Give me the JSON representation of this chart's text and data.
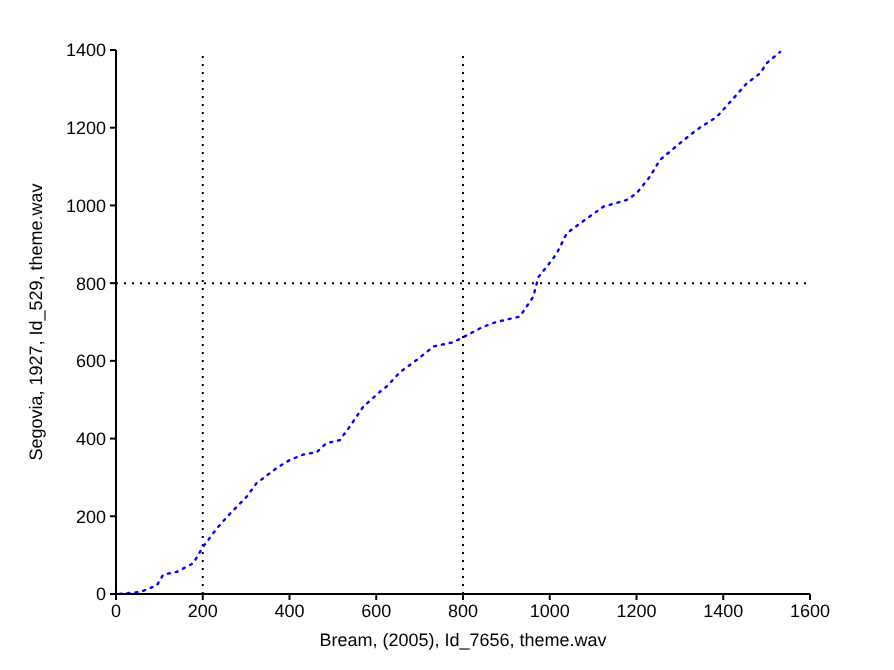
{
  "chart_data": {
    "type": "line",
    "xlabel": "Bream, (2005), Id_7656, theme.wav",
    "ylabel": "Segovia, 1927, Id_529, theme.wav",
    "x": [
      8,
      55,
      94,
      109,
      140,
      178,
      201,
      232,
      263,
      301,
      324,
      370,
      401,
      432,
      463,
      485,
      516,
      539,
      570,
      608,
      624,
      655,
      693,
      732,
      778,
      847,
      877,
      931,
      962,
      974,
      993,
      1016,
      1039,
      1070,
      1124,
      1177,
      1200,
      1231,
      1254,
      1300,
      1338,
      1385,
      1423,
      1454,
      1485,
      1500,
      1531
    ],
    "series": [
      {
        "color": "#0000ff",
        "values": [
          0,
          5,
          22,
          50,
          57,
          79,
          122,
          168,
          207,
          250,
          285,
          324,
          345,
          359,
          365,
          388,
          396,
          431,
          482,
          520,
          534,
          571,
          602,
          637,
          648,
          688,
          700,
          714,
          765,
          816,
          842,
          876,
          928,
          954,
          997,
          1014,
          1031,
          1074,
          1117,
          1160,
          1194,
          1228,
          1275,
          1314,
          1340,
          1366,
          1395
        ]
      }
    ],
    "xlim": [
      0,
      1600
    ],
    "xticks": [
      0,
      200,
      400,
      600,
      800,
      1000,
      1200,
      1400,
      1600
    ],
    "ylim": [
      0,
      1400
    ],
    "yticks": [
      0,
      200,
      400,
      600,
      800,
      1000,
      1200,
      1400
    ],
    "ref_lines": [
      {
        "axis": "x",
        "value": 200,
        "color": "#000000",
        "line_style": "dotted"
      },
      {
        "axis": "x",
        "value": 800,
        "color": "#000000",
        "line_style": "dotted"
      },
      {
        "axis": "y",
        "value": 800,
        "color": "#000000",
        "line_style": "dotted"
      }
    ],
    "grid": false,
    "legend": false,
    "marker": "none",
    "line_style": "dotted"
  }
}
